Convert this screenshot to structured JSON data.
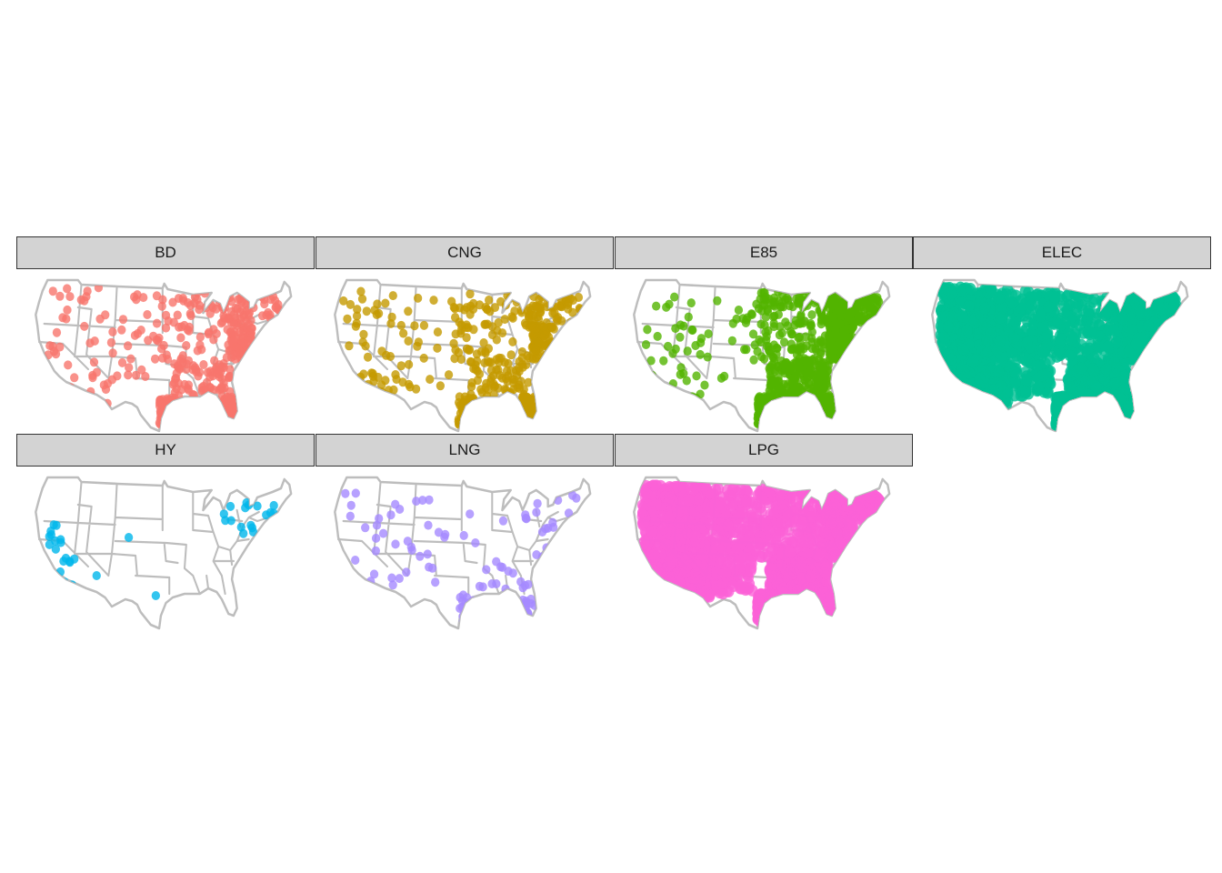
{
  "figure": {
    "type": "faceted point map",
    "background": "#ffffff",
    "strip_fill": "#d3d3d3",
    "strip_border": "#333333",
    "border_line_color": "#bdbdbd",
    "point_opacity": 0.8
  },
  "panels": [
    {
      "label": "BD",
      "color": "#F8766D",
      "density": "moderate-east"
    },
    {
      "label": "CNG",
      "color": "#C49A00",
      "density": "moderate-east"
    },
    {
      "label": "E85",
      "color": "#53B400",
      "density": "dense-midwest"
    },
    {
      "label": "ELEC",
      "color": "#00C094",
      "density": "saturated"
    },
    {
      "label": "HY",
      "color": "#00B6EB",
      "density": "sparse-coastal"
    },
    {
      "label": "LNG",
      "color": "#A58AFF",
      "density": "sparse"
    },
    {
      "label": "LPG",
      "color": "#FB61D7",
      "density": "saturated"
    }
  ]
}
